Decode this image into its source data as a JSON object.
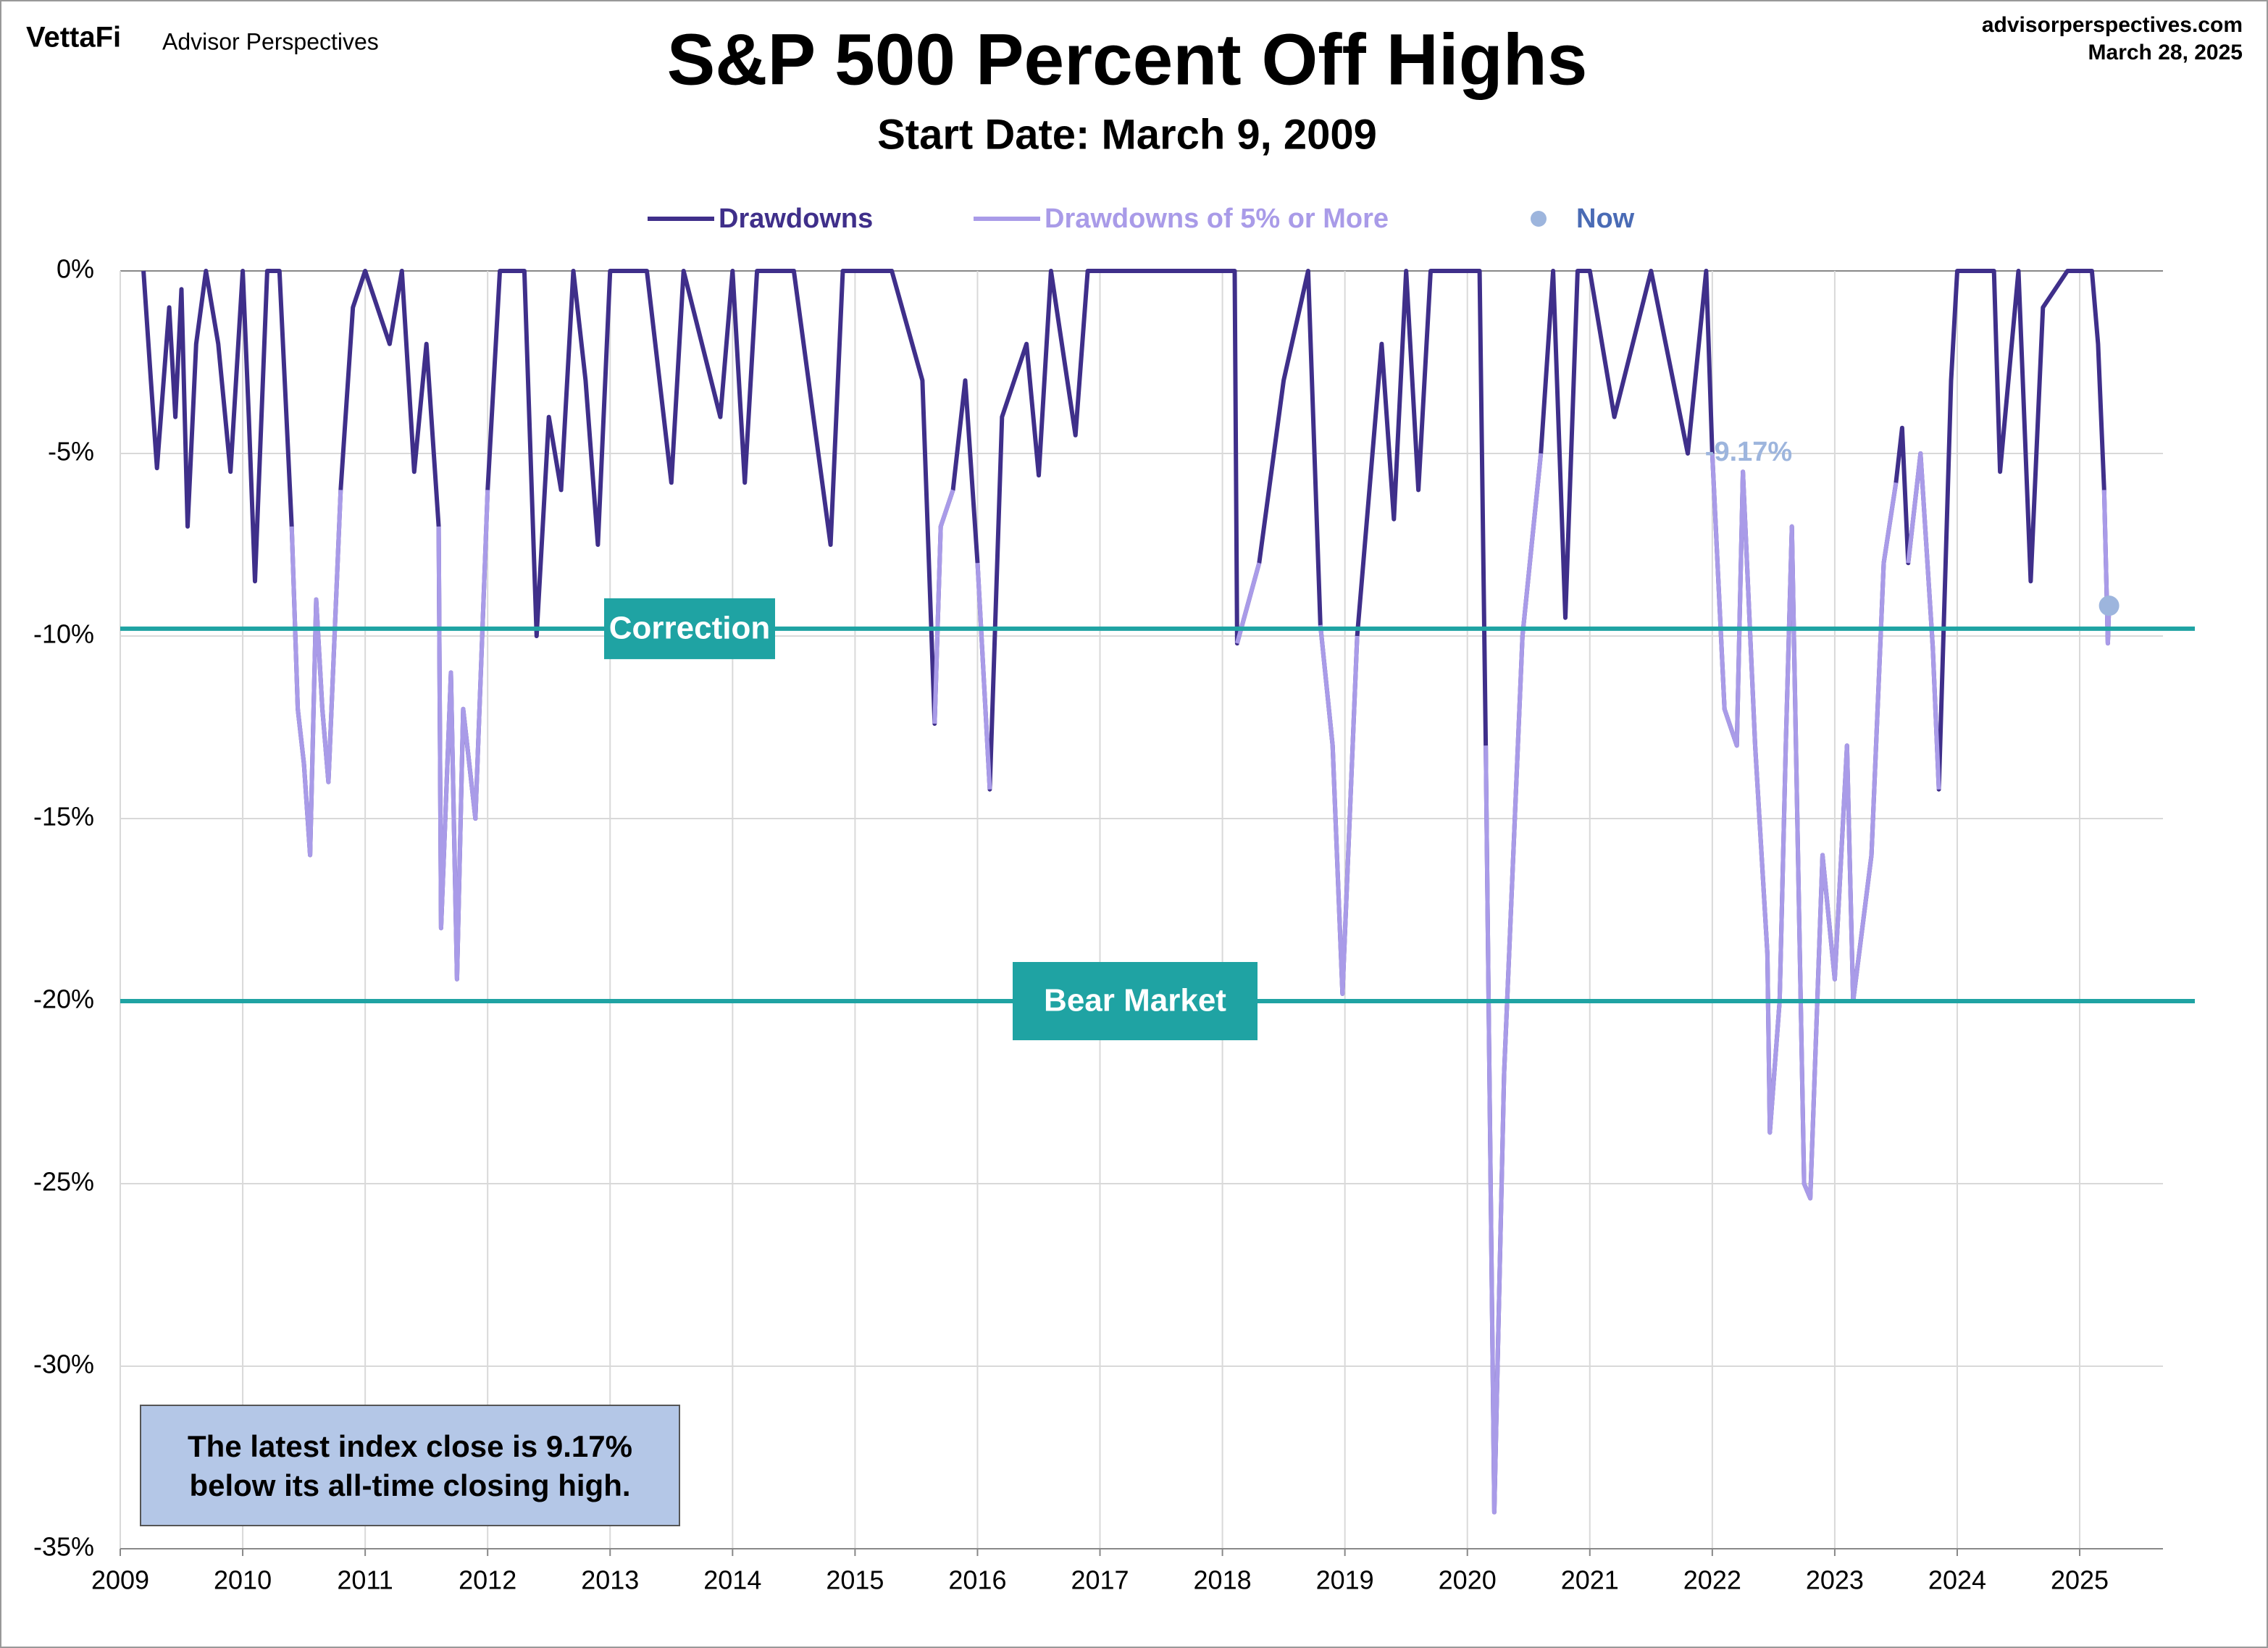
{
  "header": {
    "brand": "VettaFi",
    "publisher": "Advisor Perspectives",
    "site": "advisorperspectives.com",
    "date": "March 28, 2025"
  },
  "chart_data": {
    "type": "line",
    "title": "S&P 500 Percent Off Highs",
    "subtitle": "Start Date: March 9, 2009",
    "x": [
      2009.19,
      2009.25,
      2009.3,
      2009.4,
      2009.45,
      2009.5,
      2009.55,
      2009.62,
      2009.7,
      2009.8,
      2009.9,
      2010.0,
      2010.05,
      2010.1,
      2010.2,
      2010.3,
      2010.4,
      2010.45,
      2010.5,
      2010.55,
      2010.6,
      2010.65,
      2010.7,
      2010.8,
      2010.9,
      2011.0,
      2011.2,
      2011.3,
      2011.4,
      2011.5,
      2011.6,
      2011.62,
      2011.7,
      2011.75,
      2011.8,
      2011.9,
      2012.0,
      2012.1,
      2012.3,
      2012.4,
      2012.5,
      2012.6,
      2012.7,
      2012.8,
      2012.9,
      2013.0,
      2013.3,
      2013.5,
      2013.6,
      2013.9,
      2014.0,
      2014.1,
      2014.2,
      2014.5,
      2014.8,
      2014.9,
      2015.3,
      2015.55,
      2015.65,
      2015.7,
      2015.8,
      2015.9,
      2016.0,
      2016.1,
      2016.2,
      2016.4,
      2016.5,
      2016.6,
      2016.8,
      2016.9,
      2017.0,
      2017.5,
      2017.9,
      2018.1,
      2018.12,
      2018.3,
      2018.5,
      2018.7,
      2018.8,
      2018.9,
      2018.98,
      2019.1,
      2019.3,
      2019.4,
      2019.5,
      2019.6,
      2019.7,
      2019.9,
      2020.1,
      2020.15,
      2020.22,
      2020.3,
      2020.45,
      2020.6,
      2020.7,
      2020.8,
      2020.9,
      2021.0,
      2021.2,
      2021.5,
      2021.8,
      2021.95,
      2022.0,
      2022.1,
      2022.2,
      2022.25,
      2022.35,
      2022.45,
      2022.47,
      2022.55,
      2022.6,
      2022.65,
      2022.75,
      2022.8,
      2022.9,
      2023.0,
      2023.1,
      2023.15,
      2023.3,
      2023.4,
      2023.5,
      2023.55,
      2023.6,
      2023.7,
      2023.8,
      2023.85,
      2023.95,
      2024.0,
      2024.3,
      2024.35,
      2024.5,
      2024.6,
      2024.7,
      2024.9,
      2025.1,
      2025.15,
      2025.2,
      2025.23,
      2025.24
    ],
    "series": [
      {
        "name": "Drawdowns",
        "color": "#3f2f8a",
        "values": [
          0,
          -3,
          -5.4,
          -1,
          -4,
          -0.5,
          -7,
          -2,
          0,
          -2,
          -5.5,
          0,
          -4,
          -8.5,
          0,
          0,
          -7,
          -12,
          -13.5,
          -16,
          -9,
          -12,
          -14,
          -6,
          -1,
          0,
          -2,
          0,
          -5.5,
          -2,
          -7,
          -18,
          -11,
          -19.4,
          -12,
          -15,
          -6,
          0,
          0,
          -10,
          -4,
          -6,
          0,
          -3,
          -7.5,
          0,
          0,
          -5.8,
          0,
          -4,
          0,
          -5.8,
          0,
          0,
          -7.5,
          0,
          0,
          -3,
          -12.4,
          -7,
          -6,
          -3,
          -8,
          -14.2,
          -4,
          -2,
          -5.6,
          0,
          -4.5,
          0,
          0,
          0,
          0,
          0,
          -10.2,
          -8,
          -3,
          0,
          -9.7,
          -13,
          -19.8,
          -10,
          -2,
          -6.8,
          0,
          -6,
          0,
          0,
          0,
          -13,
          -34,
          -22,
          -10,
          -5,
          0,
          -9.5,
          0,
          0,
          -4,
          0,
          -5,
          0,
          -5,
          -12,
          -13,
          -5.5,
          -13,
          -18.7,
          -23.6,
          -20,
          -13,
          -7,
          -25,
          -25.4,
          -16,
          -19.4,
          -13,
          -20,
          -16,
          -8,
          -5.8,
          -4.3,
          -8,
          -5,
          -10.3,
          -14.2,
          -3,
          0,
          0,
          -5.5,
          0,
          -8.5,
          -1,
          0,
          0,
          -2,
          -6,
          -10.2,
          -9.17
        ]
      },
      {
        "name": "Drawdowns of 5% or More",
        "color": "#a99be8",
        "values": [
          null,
          null,
          -5.4,
          null,
          null,
          null,
          -7,
          null,
          null,
          null,
          -5.5,
          null,
          null,
          -8.5,
          null,
          null,
          -7,
          -12,
          -13.5,
          -16,
          -9,
          -12,
          -14,
          -6,
          null,
          null,
          null,
          null,
          -5.5,
          null,
          -7,
          -18,
          -11,
          -19.4,
          -12,
          -15,
          -6,
          null,
          null,
          -10,
          null,
          -6,
          null,
          null,
          -7.5,
          null,
          null,
          -5.8,
          null,
          null,
          null,
          -5.8,
          null,
          null,
          -7.5,
          null,
          null,
          null,
          -12.4,
          -7,
          -6,
          null,
          -8,
          -14.2,
          null,
          null,
          -5.6,
          null,
          null,
          null,
          null,
          null,
          null,
          null,
          -10.2,
          -8,
          null,
          null,
          -9.7,
          -13,
          -19.8,
          -10,
          null,
          -6.8,
          null,
          -6,
          null,
          null,
          null,
          -13,
          -34,
          -22,
          -10,
          -5,
          null,
          -9.5,
          null,
          null,
          null,
          null,
          -5,
          null,
          -5,
          -12,
          -13,
          -5.5,
          -13,
          -18.7,
          -23.6,
          -20,
          -13,
          -7,
          -25,
          -25.4,
          -16,
          -19.4,
          -13,
          -20,
          -16,
          -8,
          -5.8,
          null,
          -8,
          -5,
          -10.3,
          -14.2,
          null,
          null,
          null,
          -5.5,
          null,
          -8.5,
          null,
          null,
          null,
          null,
          -6,
          -10.2,
          -9.17
        ]
      },
      {
        "name": "Now",
        "color": "#9db5dd",
        "x": [
          2025.24
        ],
        "values": [
          -9.17
        ],
        "value_labels": [
          "-9.17%"
        ]
      }
    ],
    "hlines": [
      {
        "value": -9.8,
        "label": "Correction"
      },
      {
        "value": -20,
        "label": "Bear Market"
      }
    ],
    "hline_color": "#1fa3a3",
    "note": [
      "The latest index close is 9.17%",
      "below its all-time closing high."
    ],
    "xlim": [
      2009,
      2025.68
    ],
    "xticks": [
      2009,
      2010,
      2011,
      2012,
      2013,
      2014,
      2015,
      2016,
      2017,
      2018,
      2019,
      2020,
      2021,
      2022,
      2023,
      2024,
      2025
    ],
    "ylim": [
      -35,
      0
    ],
    "yticks": [
      {
        "value": 0,
        "label": "0%"
      },
      {
        "value": -5,
        "label": "-5%"
      },
      {
        "value": -10,
        "label": "-10%"
      },
      {
        "value": -15,
        "label": "-15%"
      },
      {
        "value": -20,
        "label": "-20%"
      },
      {
        "value": -25,
        "label": "-25%"
      },
      {
        "value": -30,
        "label": "-30%"
      },
      {
        "value": -35,
        "label": "-35%"
      }
    ],
    "grid": true
  }
}
